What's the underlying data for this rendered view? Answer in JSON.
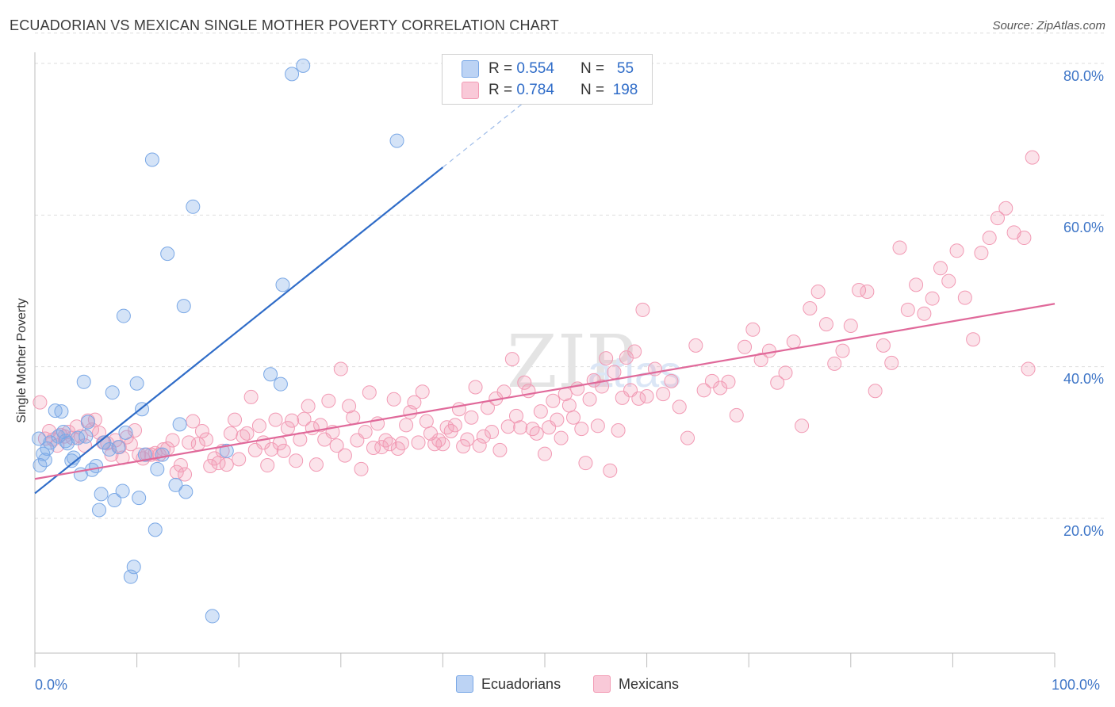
{
  "chart_data": {
    "type": "scatter",
    "title": "ECUADORIAN VS MEXICAN SINGLE MOTHER POVERTY CORRELATION CHART",
    "source": "Source: ZipAtlas.com",
    "ylabel": "Single Mother Poverty",
    "xlabel": "",
    "xlim": [
      0,
      100
    ],
    "ylim": [
      0,
      85
    ],
    "x_tick_labels": [
      "0.0%",
      "100.0%"
    ],
    "y_ticks": [
      20,
      40,
      60,
      80
    ],
    "y_tick_labels": [
      "20.0%",
      "40.0%",
      "60.0%",
      "80.0%"
    ],
    "grid": true,
    "legend_position": "top-center",
    "colors": {
      "Ecuadorians": "#7aa8e6",
      "Mexicans": "#f29ab4",
      "Ecuadorians_line": "#2f6cc8",
      "Mexicans_line": "#e0699a",
      "tick_text": "#3f76c7"
    },
    "legend": [
      {
        "series": "Ecuadorians",
        "r_label": "R =",
        "r_value": "0.554",
        "n_label": "N =",
        "n_value": "55"
      },
      {
        "series": "Mexicans",
        "r_label": "R =",
        "r_value": "0.784",
        "n_label": "N =",
        "n_value": "198"
      }
    ],
    "series": [
      {
        "name": "Ecuadorians",
        "trend": {
          "x0": 0,
          "y0": 23.3,
          "x1": 40,
          "y1": 66.3,
          "dash_to_x": 48,
          "dash_to_y": 74.9
        },
        "points": [
          [
            0.4,
            30.5
          ],
          [
            0.5,
            27.0
          ],
          [
            0.8,
            28.5
          ],
          [
            1.0,
            27.7
          ],
          [
            1.2,
            29.2
          ],
          [
            1.5,
            30.0
          ],
          [
            2.0,
            34.2
          ],
          [
            2.3,
            30.8
          ],
          [
            2.6,
            34.1
          ],
          [
            2.8,
            31.4
          ],
          [
            3.2,
            29.9
          ],
          [
            3.6,
            27.6
          ],
          [
            3.8,
            28.0
          ],
          [
            4.2,
            30.6
          ],
          [
            4.5,
            25.8
          ],
          [
            4.8,
            38.0
          ],
          [
            5.0,
            30.8
          ],
          [
            5.2,
            32.7
          ],
          [
            5.6,
            26.4
          ],
          [
            6.0,
            26.9
          ],
          [
            6.3,
            21.1
          ],
          [
            6.5,
            23.2
          ],
          [
            6.8,
            30.0
          ],
          [
            7.3,
            29.1
          ],
          [
            7.6,
            36.6
          ],
          [
            7.8,
            22.4
          ],
          [
            8.2,
            29.4
          ],
          [
            8.6,
            23.6
          ],
          [
            8.7,
            46.7
          ],
          [
            8.9,
            31.3
          ],
          [
            9.4,
            12.3
          ],
          [
            9.7,
            13.6
          ],
          [
            10.0,
            37.8
          ],
          [
            10.2,
            22.7
          ],
          [
            10.5,
            34.4
          ],
          [
            10.8,
            28.4
          ],
          [
            11.5,
            67.3
          ],
          [
            11.8,
            18.5
          ],
          [
            12.0,
            26.5
          ],
          [
            12.5,
            28.4
          ],
          [
            13.0,
            54.9
          ],
          [
            13.8,
            24.4
          ],
          [
            14.2,
            32.4
          ],
          [
            14.6,
            48.0
          ],
          [
            14.8,
            23.5
          ],
          [
            15.5,
            61.1
          ],
          [
            17.4,
            7.1
          ],
          [
            18.8,
            28.9
          ],
          [
            23.1,
            39.0
          ],
          [
            24.1,
            37.7
          ],
          [
            24.3,
            50.8
          ],
          [
            25.2,
            78.6
          ],
          [
            26.3,
            79.7
          ],
          [
            35.5,
            69.8
          ],
          [
            3.0,
            30.2
          ]
        ]
      },
      {
        "name": "Mexicans",
        "trend": {
          "x0": 0,
          "y0": 25.2,
          "x1": 100,
          "y1": 48.3
        },
        "points": [
          [
            0.5,
            35.3
          ],
          [
            1.0,
            30.5
          ],
          [
            1.4,
            31.5
          ],
          [
            1.8,
            30.4
          ],
          [
            2.2,
            29.6
          ],
          [
            2.5,
            31.0
          ],
          [
            2.9,
            30.8
          ],
          [
            3.3,
            31.4
          ],
          [
            3.7,
            30.6
          ],
          [
            4.1,
            32.1
          ],
          [
            4.5,
            30.8
          ],
          [
            4.9,
            29.6
          ],
          [
            5.2,
            32.9
          ],
          [
            5.6,
            31.7
          ],
          [
            5.9,
            33.0
          ],
          [
            6.3,
            31.3
          ],
          [
            6.7,
            30.0
          ],
          [
            7.1,
            29.9
          ],
          [
            7.5,
            28.4
          ],
          [
            7.9,
            30.3
          ],
          [
            8.3,
            29.4
          ],
          [
            8.6,
            28.0
          ],
          [
            9.0,
            30.7
          ],
          [
            9.4,
            29.8
          ],
          [
            9.8,
            31.6
          ],
          [
            10.2,
            28.4
          ],
          [
            10.6,
            27.9
          ],
          [
            11.0,
            28.4
          ],
          [
            11.4,
            28.4
          ],
          [
            11.8,
            28.6
          ],
          [
            12.2,
            28.4
          ],
          [
            12.6,
            29.1
          ],
          [
            13.0,
            29.2
          ],
          [
            13.5,
            30.3
          ],
          [
            13.9,
            26.1
          ],
          [
            14.3,
            27.0
          ],
          [
            14.7,
            25.8
          ],
          [
            15.1,
            30.0
          ],
          [
            15.5,
            32.8
          ],
          [
            16.0,
            29.8
          ],
          [
            16.4,
            31.5
          ],
          [
            16.8,
            30.4
          ],
          [
            17.2,
            26.9
          ],
          [
            17.6,
            27.9
          ],
          [
            18.0,
            27.3
          ],
          [
            18.4,
            28.9
          ],
          [
            18.8,
            27.1
          ],
          [
            19.2,
            31.2
          ],
          [
            19.6,
            33.0
          ],
          [
            20.0,
            27.8
          ],
          [
            20.4,
            30.8
          ],
          [
            20.8,
            31.2
          ],
          [
            21.2,
            36.0
          ],
          [
            21.6,
            29.0
          ],
          [
            22.0,
            32.2
          ],
          [
            22.4,
            30.0
          ],
          [
            22.8,
            27.0
          ],
          [
            23.2,
            29.1
          ],
          [
            23.6,
            33.0
          ],
          [
            24.0,
            29.9
          ],
          [
            24.4,
            28.9
          ],
          [
            24.8,
            31.9
          ],
          [
            25.2,
            32.9
          ],
          [
            25.6,
            27.6
          ],
          [
            26.0,
            30.4
          ],
          [
            26.4,
            33.1
          ],
          [
            26.8,
            34.8
          ],
          [
            27.2,
            31.9
          ],
          [
            27.6,
            27.1
          ],
          [
            28.0,
            32.3
          ],
          [
            28.4,
            30.4
          ],
          [
            28.8,
            35.5
          ],
          [
            29.2,
            31.4
          ],
          [
            29.6,
            29.6
          ],
          [
            30.0,
            39.7
          ],
          [
            30.4,
            28.3
          ],
          [
            30.8,
            34.8
          ],
          [
            31.2,
            33.3
          ],
          [
            31.6,
            30.3
          ],
          [
            32.0,
            26.5
          ],
          [
            32.4,
            31.4
          ],
          [
            32.8,
            36.6
          ],
          [
            33.2,
            29.3
          ],
          [
            33.6,
            32.5
          ],
          [
            34.0,
            29.4
          ],
          [
            34.4,
            30.3
          ],
          [
            34.8,
            29.8
          ],
          [
            35.2,
            35.7
          ],
          [
            35.6,
            29.2
          ],
          [
            36.0,
            29.9
          ],
          [
            36.4,
            32.3
          ],
          [
            36.8,
            34.0
          ],
          [
            37.2,
            35.3
          ],
          [
            37.6,
            30.0
          ],
          [
            38.0,
            36.7
          ],
          [
            38.4,
            32.8
          ],
          [
            38.8,
            31.2
          ],
          [
            39.2,
            29.8
          ],
          [
            39.6,
            30.3
          ],
          [
            40.0,
            29.8
          ],
          [
            40.4,
            32.0
          ],
          [
            40.8,
            31.5
          ],
          [
            41.2,
            32.3
          ],
          [
            41.6,
            34.4
          ],
          [
            42.0,
            29.5
          ],
          [
            42.4,
            30.4
          ],
          [
            42.8,
            33.3
          ],
          [
            43.2,
            37.3
          ],
          [
            43.6,
            29.6
          ],
          [
            44.0,
            30.8
          ],
          [
            44.4,
            34.6
          ],
          [
            44.8,
            31.4
          ],
          [
            45.2,
            35.8
          ],
          [
            45.6,
            29.0
          ],
          [
            46.0,
            36.7
          ],
          [
            46.4,
            32.1
          ],
          [
            46.8,
            41.0
          ],
          [
            47.2,
            33.5
          ],
          [
            47.6,
            32.0
          ],
          [
            48.0,
            37.9
          ],
          [
            48.4,
            36.8
          ],
          [
            48.8,
            31.8
          ],
          [
            49.2,
            31.2
          ],
          [
            49.6,
            34.1
          ],
          [
            50.0,
            28.5
          ],
          [
            50.4,
            32.0
          ],
          [
            50.8,
            35.5
          ],
          [
            51.2,
            33.0
          ],
          [
            51.6,
            30.6
          ],
          [
            52.0,
            36.4
          ],
          [
            52.4,
            34.9
          ],
          [
            52.8,
            33.3
          ],
          [
            53.2,
            37.1
          ],
          [
            53.6,
            31.8
          ],
          [
            54.0,
            27.3
          ],
          [
            54.4,
            35.7
          ],
          [
            54.8,
            38.2
          ],
          [
            55.2,
            32.2
          ],
          [
            55.6,
            37.4
          ],
          [
            56.0,
            41.1
          ],
          [
            56.4,
            26.3
          ],
          [
            56.8,
            39.3
          ],
          [
            57.2,
            31.6
          ],
          [
            57.6,
            35.9
          ],
          [
            58.0,
            41.2
          ],
          [
            58.4,
            36.9
          ],
          [
            58.8,
            42.0
          ],
          [
            59.2,
            35.8
          ],
          [
            59.6,
            47.5
          ],
          [
            60.0,
            36.1
          ],
          [
            60.8,
            39.7
          ],
          [
            61.6,
            36.4
          ],
          [
            62.4,
            38.1
          ],
          [
            63.2,
            34.7
          ],
          [
            64.0,
            30.6
          ],
          [
            64.8,
            42.8
          ],
          [
            65.6,
            36.9
          ],
          [
            66.4,
            38.1
          ],
          [
            67.2,
            37.2
          ],
          [
            68.0,
            38.0
          ],
          [
            68.8,
            33.6
          ],
          [
            69.6,
            42.6
          ],
          [
            70.4,
            44.9
          ],
          [
            71.2,
            40.9
          ],
          [
            72.0,
            42.1
          ],
          [
            72.8,
            37.9
          ],
          [
            73.6,
            39.2
          ],
          [
            74.4,
            43.3
          ],
          [
            75.2,
            32.2
          ],
          [
            76.0,
            47.7
          ],
          [
            76.8,
            49.9
          ],
          [
            77.6,
            45.6
          ],
          [
            78.4,
            40.4
          ],
          [
            79.2,
            42.1
          ],
          [
            80.0,
            45.4
          ],
          [
            80.8,
            50.1
          ],
          [
            81.6,
            49.9
          ],
          [
            82.4,
            36.8
          ],
          [
            83.2,
            42.8
          ],
          [
            84.0,
            40.5
          ],
          [
            84.8,
            55.7
          ],
          [
            85.6,
            47.5
          ],
          [
            86.4,
            50.8
          ],
          [
            87.2,
            47.0
          ],
          [
            88.0,
            49.0
          ],
          [
            88.8,
            53.0
          ],
          [
            89.6,
            51.3
          ],
          [
            90.4,
            55.3
          ],
          [
            91.2,
            49.1
          ],
          [
            92.0,
            43.6
          ],
          [
            92.8,
            55.0
          ],
          [
            93.6,
            57.0
          ],
          [
            94.4,
            59.6
          ],
          [
            95.2,
            60.9
          ],
          [
            96.0,
            57.7
          ],
          [
            97.0,
            57.0
          ],
          [
            97.4,
            39.7
          ],
          [
            97.8,
            67.6
          ]
        ]
      }
    ]
  },
  "legend_bottom": {
    "ecuadorians_label": "Ecuadorians",
    "mexicans_label": "Mexicans"
  }
}
